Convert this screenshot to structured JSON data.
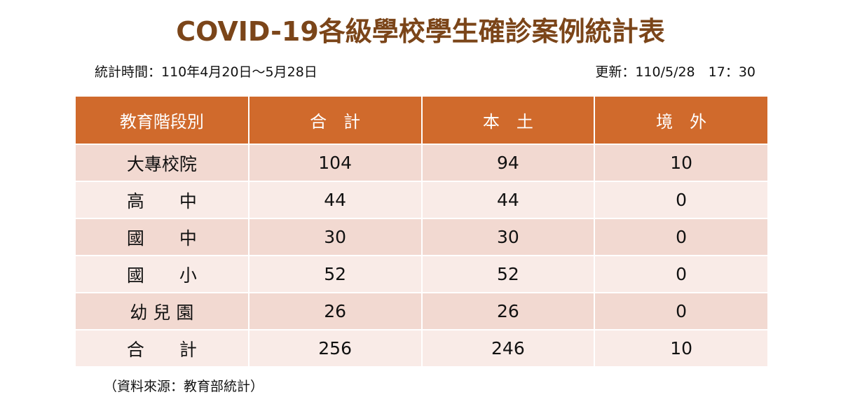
{
  "title": "COVID-19各級學校學生確診案例統計表",
  "period": "統計時間：110年4月20日～5月28日",
  "updated": "更新：110/5/28　17：30",
  "table": {
    "header": [
      "教育階段別",
      "合　計",
      "本　土",
      "境　外"
    ],
    "rows": [
      [
        "大專校院",
        104,
        94,
        10
      ],
      [
        "高　　中",
        44,
        44,
        0
      ],
      [
        "國　　中",
        30,
        30,
        0
      ],
      [
        "國　　小",
        52,
        52,
        0
      ],
      [
        "幼 兒 園",
        26,
        26,
        0
      ],
      [
        "合　　計",
        256,
        246,
        10
      ]
    ]
  },
  "source": "（資料來源：教育部統計）"
}
